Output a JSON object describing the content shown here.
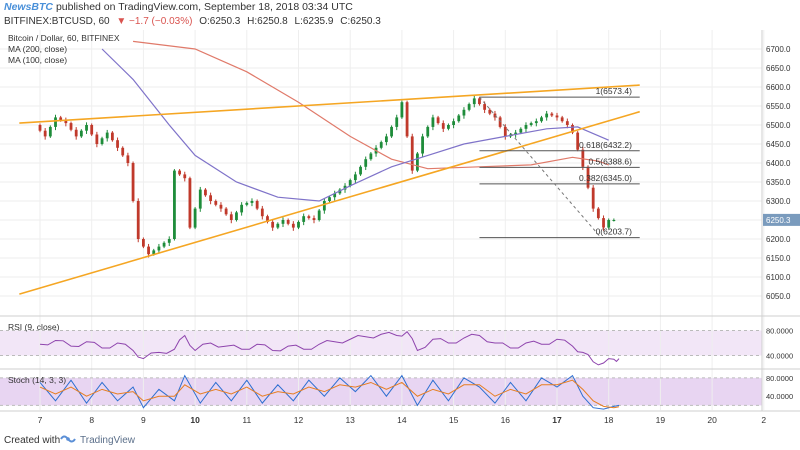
{
  "header": {
    "source": "NewsBTC",
    "published": "published on TradingView.com, September 18, 2018 03:34 UTC",
    "symbol": "BITFINEX:BTCUSD, 60",
    "change": "▼ −1.7 (−0.03%)",
    "ohlc": [
      "O:6250.3",
      "H:6250.8",
      "L:6235.9",
      "C:6250.3"
    ]
  },
  "legend": {
    "title": "Bitcoin / Dollar, 60, BITFINEX",
    "ma1": "MA (200, close)",
    "ma2": "MA (100, close)"
  },
  "footer": {
    "created": "Created with",
    "brand": "TradingView"
  },
  "chart_data": [
    {
      "type": "candlestick",
      "title": "Bitcoin / Dollar, 60, BITFINEX",
      "x_ticks": [
        "7",
        "8",
        "9",
        "10",
        "11",
        "12",
        "13",
        "14",
        "15",
        "16",
        "17",
        "18",
        "19",
        "20",
        "2"
      ],
      "ylim": [
        6000,
        6750
      ],
      "y_ticks": [
        6050,
        6100,
        6150,
        6200,
        6250,
        6300,
        6350,
        6400,
        6450,
        6500,
        6550,
        6600,
        6650,
        6700
      ],
      "last_price": 6250.3,
      "colors": {
        "up": "#1e8c3a",
        "down": "#c0392b",
        "ma200": "#e07a6a",
        "ma100": "#7f73c9",
        "trendline": "#f5a623",
        "fib": "#555555"
      },
      "close_path": [
        [
          7.0,
          6500
        ],
        [
          7.2,
          6470
        ],
        [
          7.4,
          6520
        ],
        [
          7.6,
          6505
        ],
        [
          7.8,
          6470
        ],
        [
          8.0,
          6500
        ],
        [
          8.2,
          6450
        ],
        [
          8.4,
          6480
        ],
        [
          8.6,
          6440
        ],
        [
          8.8,
          6400
        ],
        [
          9.0,
          6200
        ],
        [
          9.2,
          6160
        ],
        [
          9.4,
          6180
        ],
        [
          9.6,
          6200
        ],
        [
          9.7,
          6380
        ],
        [
          9.9,
          6360
        ],
        [
          10.0,
          6230
        ],
        [
          10.2,
          6330
        ],
        [
          10.4,
          6300
        ],
        [
          10.6,
          6280
        ],
        [
          10.8,
          6250
        ],
        [
          11.0,
          6290
        ],
        [
          11.2,
          6300
        ],
        [
          11.4,
          6260
        ],
        [
          11.6,
          6230
        ],
        [
          11.8,
          6250
        ],
        [
          12.0,
          6230
        ],
        [
          12.2,
          6260
        ],
        [
          12.4,
          6250
        ],
        [
          12.6,
          6300
        ],
        [
          12.8,
          6320
        ],
        [
          13.0,
          6340
        ],
        [
          13.2,
          6370
        ],
        [
          13.4,
          6410
        ],
        [
          13.6,
          6440
        ],
        [
          13.8,
          6470
        ],
        [
          14.0,
          6520
        ],
        [
          14.1,
          6560
        ],
        [
          14.3,
          6380
        ],
        [
          14.5,
          6470
        ],
        [
          14.7,
          6520
        ],
        [
          14.9,
          6490
        ],
        [
          15.1,
          6510
        ],
        [
          15.3,
          6540
        ],
        [
          15.5,
          6570
        ],
        [
          15.7,
          6540
        ],
        [
          15.9,
          6520
        ],
        [
          16.1,
          6470
        ],
        [
          16.3,
          6480
        ],
        [
          16.5,
          6500
        ],
        [
          16.7,
          6510
        ],
        [
          16.9,
          6530
        ],
        [
          17.1,
          6520
        ],
        [
          17.3,
          6500
        ],
        [
          17.4,
          6480
        ],
        [
          17.6,
          6390
        ],
        [
          17.8,
          6280
        ],
        [
          18.0,
          6230
        ],
        [
          18.1,
          6250
        ],
        [
          18.2,
          6250
        ]
      ],
      "ma200": [
        [
          8.8,
          6720
        ],
        [
          10.0,
          6700
        ],
        [
          11.0,
          6640
        ],
        [
          12.0,
          6560
        ],
        [
          13.0,
          6470
        ],
        [
          13.8,
          6410
        ],
        [
          14.5,
          6385
        ],
        [
          15.5,
          6390
        ],
        [
          16.5,
          6395
        ],
        [
          17.3,
          6415
        ],
        [
          17.8,
          6405
        ],
        [
          18.0,
          6395
        ]
      ],
      "ma100": [
        [
          8.2,
          6700
        ],
        [
          8.8,
          6620
        ],
        [
          9.5,
          6500
        ],
        [
          10.0,
          6420
        ],
        [
          10.8,
          6350
        ],
        [
          11.6,
          6310
        ],
        [
          12.4,
          6300
        ],
        [
          13.0,
          6340
        ],
        [
          13.8,
          6390
        ],
        [
          14.5,
          6420
        ],
        [
          15.2,
          6450
        ],
        [
          16.0,
          6470
        ],
        [
          16.8,
          6490
        ],
        [
          17.4,
          6495
        ],
        [
          18.0,
          6460
        ]
      ],
      "trendlines": [
        {
          "from": [
            6.6,
            6505
          ],
          "to": [
            18.6,
            6605
          ]
        },
        {
          "from": [
            6.6,
            6055
          ],
          "to": [
            18.6,
            6535
          ]
        }
      ],
      "fib_levels": [
        {
          "label": "1(6573.4)",
          "value": 6573.4
        },
        {
          "label": "0.618(6432.2)",
          "value": 6432.2
        },
        {
          "label": "0.5(6388.6)",
          "value": 6388.6
        },
        {
          "label": "0.382(6345.0)",
          "value": 6345.0
        },
        {
          "label": "0(6203.7)",
          "value": 6203.7
        }
      ]
    },
    {
      "type": "line",
      "title": "RSI (9, close)",
      "y_ticks": [
        40,
        80
      ],
      "y_tick_labels": [
        "40.0000",
        "80.0000"
      ],
      "ylim": [
        20,
        100
      ],
      "values": [
        [
          7.0,
          58
        ],
        [
          7.3,
          64
        ],
        [
          7.6,
          55
        ],
        [
          7.9,
          62
        ],
        [
          8.2,
          52
        ],
        [
          8.5,
          60
        ],
        [
          8.8,
          48
        ],
        [
          9.0,
          35
        ],
        [
          9.3,
          45
        ],
        [
          9.6,
          50
        ],
        [
          9.8,
          72
        ],
        [
          10.0,
          48
        ],
        [
          10.3,
          60
        ],
        [
          10.6,
          55
        ],
        [
          10.9,
          50
        ],
        [
          11.2,
          58
        ],
        [
          11.5,
          48
        ],
        [
          11.8,
          55
        ],
        [
          12.1,
          50
        ],
        [
          12.4,
          58
        ],
        [
          12.7,
          62
        ],
        [
          13.0,
          66
        ],
        [
          13.3,
          70
        ],
        [
          13.6,
          74
        ],
        [
          13.9,
          72
        ],
        [
          14.1,
          78
        ],
        [
          14.3,
          48
        ],
        [
          14.6,
          66
        ],
        [
          14.9,
          60
        ],
        [
          15.2,
          68
        ],
        [
          15.5,
          72
        ],
        [
          15.8,
          60
        ],
        [
          16.1,
          52
        ],
        [
          16.4,
          60
        ],
        [
          16.7,
          58
        ],
        [
          17.0,
          66
        ],
        [
          17.3,
          55
        ],
        [
          17.5,
          45
        ],
        [
          17.7,
          30
        ],
        [
          17.9,
          28
        ],
        [
          18.1,
          34
        ],
        [
          18.2,
          35
        ]
      ]
    },
    {
      "type": "line",
      "title": "Stoch (14, 3, 3)",
      "y_ticks": [
        40,
        80
      ],
      "y_tick_labels": [
        "40.0000",
        "80.0000"
      ],
      "ylim": [
        10,
        95
      ],
      "k_values": [
        [
          7.0,
          70
        ],
        [
          7.3,
          30
        ],
        [
          7.6,
          75
        ],
        [
          7.9,
          25
        ],
        [
          8.2,
          70
        ],
        [
          8.5,
          30
        ],
        [
          8.8,
          60
        ],
        [
          9.0,
          15
        ],
        [
          9.3,
          55
        ],
        [
          9.6,
          30
        ],
        [
          9.8,
          85
        ],
        [
          10.1,
          25
        ],
        [
          10.4,
          70
        ],
        [
          10.7,
          30
        ],
        [
          11.0,
          75
        ],
        [
          11.3,
          25
        ],
        [
          11.6,
          65
        ],
        [
          11.9,
          30
        ],
        [
          12.2,
          75
        ],
        [
          12.5,
          40
        ],
        [
          12.8,
          80
        ],
        [
          13.1,
          50
        ],
        [
          13.4,
          85
        ],
        [
          13.7,
          40
        ],
        [
          14.0,
          85
        ],
        [
          14.3,
          20
        ],
        [
          14.6,
          75
        ],
        [
          14.9,
          30
        ],
        [
          15.2,
          80
        ],
        [
          15.5,
          60
        ],
        [
          15.8,
          25
        ],
        [
          16.1,
          70
        ],
        [
          16.4,
          30
        ],
        [
          16.7,
          80
        ],
        [
          17.0,
          60
        ],
        [
          17.3,
          85
        ],
        [
          17.5,
          40
        ],
        [
          17.7,
          15
        ],
        [
          17.9,
          12
        ],
        [
          18.1,
          18
        ],
        [
          18.2,
          20
        ]
      ],
      "d_values": [
        [
          7.0,
          60
        ],
        [
          7.3,
          45
        ],
        [
          7.6,
          60
        ],
        [
          7.9,
          40
        ],
        [
          8.2,
          55
        ],
        [
          8.5,
          45
        ],
        [
          8.8,
          50
        ],
        [
          9.0,
          30
        ],
        [
          9.3,
          40
        ],
        [
          9.6,
          40
        ],
        [
          9.8,
          65
        ],
        [
          10.1,
          45
        ],
        [
          10.4,
          55
        ],
        [
          10.7,
          45
        ],
        [
          11.0,
          60
        ],
        [
          11.3,
          40
        ],
        [
          11.6,
          50
        ],
        [
          11.9,
          45
        ],
        [
          12.2,
          60
        ],
        [
          12.5,
          50
        ],
        [
          12.8,
          65
        ],
        [
          13.1,
          60
        ],
        [
          13.4,
          70
        ],
        [
          13.7,
          55
        ],
        [
          14.0,
          70
        ],
        [
          14.3,
          40
        ],
        [
          14.6,
          55
        ],
        [
          14.9,
          45
        ],
        [
          15.2,
          65
        ],
        [
          15.5,
          65
        ],
        [
          15.8,
          40
        ],
        [
          16.1,
          55
        ],
        [
          16.4,
          45
        ],
        [
          16.7,
          65
        ],
        [
          17.0,
          65
        ],
        [
          17.3,
          75
        ],
        [
          17.5,
          55
        ],
        [
          17.7,
          30
        ],
        [
          17.9,
          18
        ],
        [
          18.1,
          15
        ],
        [
          18.2,
          17
        ]
      ]
    }
  ]
}
